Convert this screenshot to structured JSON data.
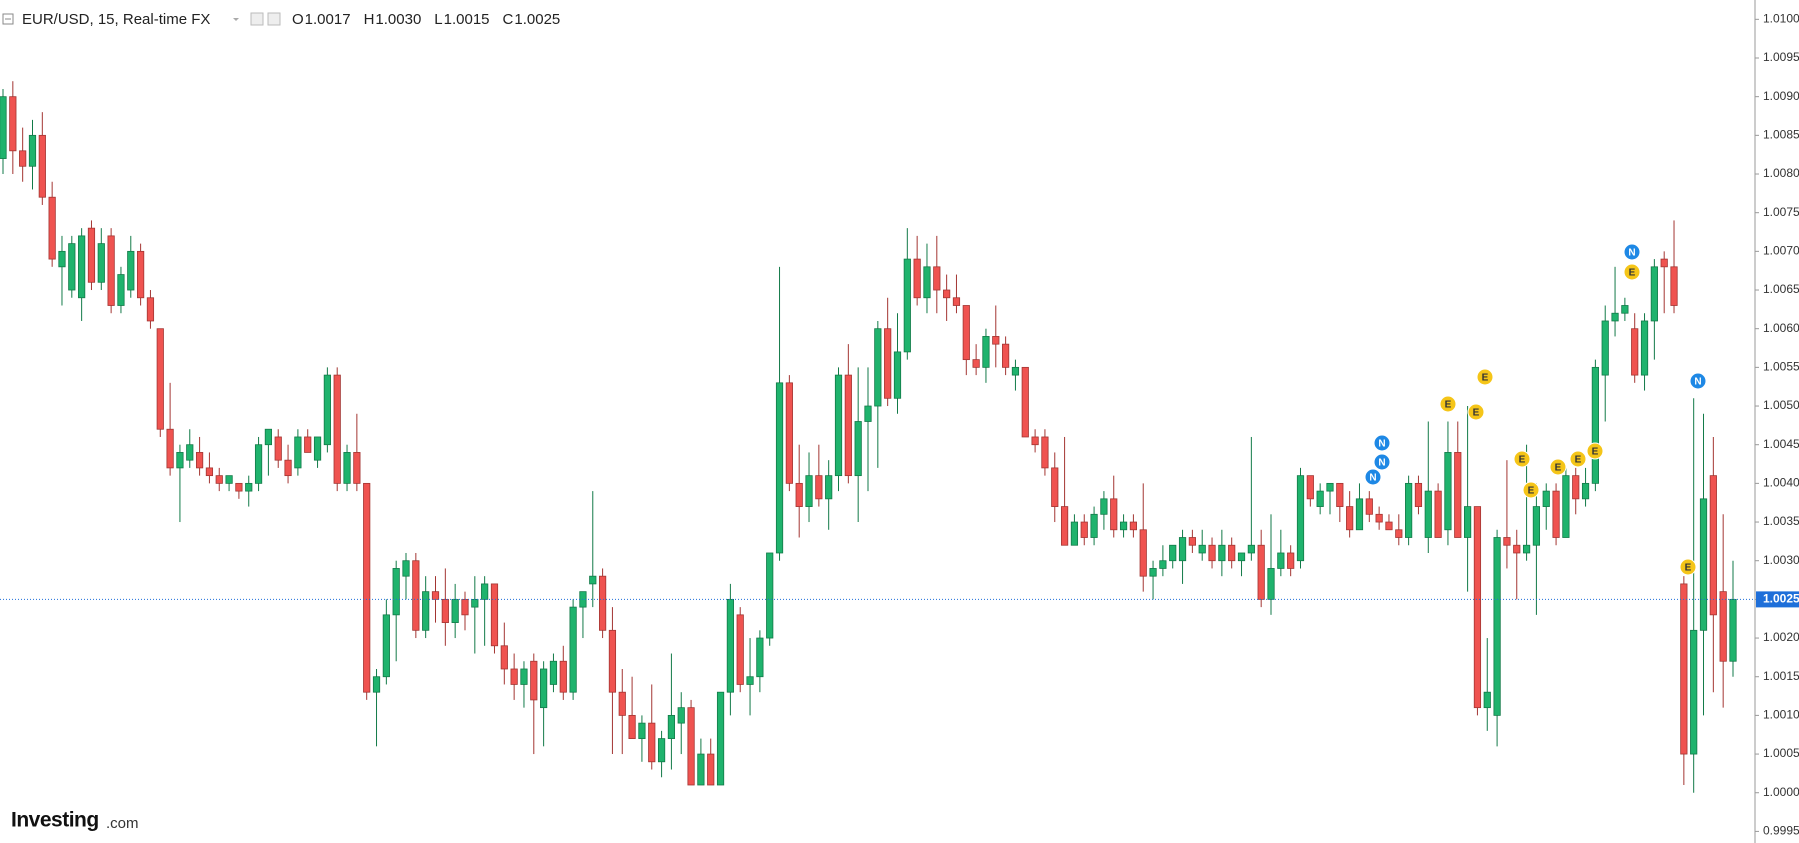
{
  "chart_data": {
    "type": "candlestick",
    "symbol": "EUR/USD, 15, Real-time FX",
    "ohlc": [
      {
        "name": "O",
        "value": {
          "value": 1.0017,
          "label": "1.0017"
        }
      },
      {
        "name": "H",
        "value": {
          "value": 1.003,
          "label": "1.0030"
        }
      },
      {
        "name": "L",
        "value": {
          "value": 1.0015,
          "label": "1.0015"
        }
      },
      {
        "name": "C",
        "value": {
          "value": 1.0025,
          "label": "1.0025"
        }
      }
    ],
    "last": {
      "value": 1.0025,
      "label": "1.0025"
    },
    "up_color": "#1fb36d",
    "down_color": "#ef5350",
    "line_color": "#1e6fd9",
    "brand": "Investing",
    "brand_suffix": ".com",
    "events": [
      "N",
      "N",
      "N",
      "E",
      "E",
      "E",
      "E",
      "E",
      "E",
      "E",
      "E",
      "E",
      "N",
      "N",
      "E"
    ],
    "ylim": [
      0.99935,
      1.01025
    ],
    "yticks": [
      {
        "value": 0.9995,
        "label": "0.9995"
      },
      {
        "value": 1.0,
        "label": "1.0000"
      },
      {
        "value": 1.0005,
        "label": "1.0005"
      },
      {
        "value": 1.001,
        "label": "1.0010"
      },
      {
        "value": 1.0015,
        "label": "1.0015"
      },
      {
        "value": 1.002,
        "label": "1.0020"
      },
      {
        "value": 1.0025,
        "label": "1.0025"
      },
      {
        "value": 1.003,
        "label": "1.0030"
      },
      {
        "value": 1.0035,
        "label": "1.0035"
      },
      {
        "value": 1.004,
        "label": "1.0040"
      },
      {
        "value": 1.0045,
        "label": "1.0045"
      },
      {
        "value": 1.005,
        "label": "1.0050"
      },
      {
        "value": 1.0055,
        "label": "1.0055"
      },
      {
        "value": 1.006,
        "label": "1.0060"
      },
      {
        "value": 1.0065,
        "label": "1.0065"
      },
      {
        "value": 1.007,
        "label": "1.0070"
      },
      {
        "value": 1.0075,
        "label": "1.0075"
      },
      {
        "value": 1.008,
        "label": "1.0080"
      },
      {
        "value": 1.0085,
        "label": "1.0085"
      },
      {
        "value": 1.009,
        "label": "1.0090"
      },
      {
        "value": 1.0095,
        "label": "1.0095"
      },
      {
        "value": 1.01,
        "label": "1.0100"
      }
    ],
    "open": [
      1.0082,
      1.009,
      1.0083,
      1.0081,
      1.0085,
      1.0077,
      1.0068,
      1.0065,
      1.0064,
      1.0073,
      1.0066,
      1.0072,
      1.0063,
      1.0065,
      1.007,
      1.0064,
      1.006,
      1.0047,
      1.0042,
      1.0043,
      1.0044,
      1.0042,
      1.0041,
      1.004,
      1.004,
      1.0039,
      1.004,
      1.0045,
      1.0046,
      1.0043,
      1.0042,
      1.0046,
      1.0043,
      1.0045,
      1.0054,
      1.004,
      1.0044,
      1.004,
      1.0013,
      1.0015,
      1.0023,
      1.0028,
      1.003,
      1.0021,
      1.0026,
      1.0025,
      1.0022,
      1.0025,
      1.0024,
      1.0025,
      1.0027,
      1.0019,
      1.0016,
      1.0014,
      1.0017,
      1.0011,
      1.0014,
      1.0017,
      1.0013,
      1.0024,
      1.0027,
      1.0028,
      1.0021,
      1.0013,
      1.001,
      1.0007,
      1.0009,
      1.0004,
      1.0007,
      1.0009,
      1.0011,
      1.0001,
      1.0005,
      1.0001,
      1.0013,
      1.0023,
      1.0014,
      1.0015,
      1.002,
      1.0031,
      1.0053,
      1.004,
      1.0037,
      1.0041,
      1.0038,
      1.0041,
      1.0054,
      1.0041,
      1.0048,
      1.005,
      1.006,
      1.0051,
      1.0057,
      1.0069,
      1.0064,
      1.0068,
      1.0065,
      1.0064,
      1.0063,
      1.0056,
      1.0055,
      1.0059,
      1.0058,
      1.0054,
      1.0055,
      1.0046,
      1.0046,
      1.0042,
      1.0037,
      1.0032,
      1.0035,
      1.0033,
      1.0036,
      1.0038,
      1.0034,
      1.0035,
      1.0034,
      1.0028,
      1.0029,
      1.003,
      1.003,
      1.0033,
      1.0031,
      1.0032,
      1.003,
      1.0032,
      1.003,
      1.0031,
      1.0032,
      1.0025,
      1.0029,
      1.0031,
      1.003,
      1.0041,
      1.0037,
      1.0039,
      1.004,
      1.0037,
      1.0034,
      1.0038,
      1.0036,
      1.0035,
      1.0034,
      1.0033,
      1.004,
      1.0033,
      1.0039,
      1.0034,
      1.0044,
      1.0033,
      1.0037,
      1.0011,
      1.001,
      1.0033,
      1.0032,
      1.0031,
      1.0032,
      1.0037,
      1.0039,
      1.0033,
      1.0041,
      1.0038,
      1.004,
      1.0054,
      1.0061,
      1.0062,
      1.006,
      1.0054,
      1.0061,
      1.0069,
      1.0068,
      1.0027,
      1.0005,
      1.0021,
      1.0041,
      1.0026,
      1.0017
    ],
    "high": [
      1.0091,
      1.0092,
      1.0086,
      1.0087,
      1.0088,
      1.0079,
      1.0072,
      1.0072,
      1.0073,
      1.0074,
      1.0073,
      1.0073,
      1.0068,
      1.0072,
      1.0071,
      1.0065,
      1.006,
      1.0053,
      1.0045,
      1.0047,
      1.0046,
      1.0044,
      1.0042,
      1.0041,
      1.004,
      1.0041,
      1.0046,
      1.0047,
      1.0047,
      1.0045,
      1.0047,
      1.0047,
      1.0046,
      1.0055,
      1.0055,
      1.0045,
      1.0049,
      1.004,
      1.0016,
      1.0025,
      1.003,
      1.0031,
      1.0031,
      1.0028,
      1.0028,
      1.0029,
      1.0027,
      1.0026,
      1.0028,
      1.0028,
      1.0027,
      1.0022,
      1.0018,
      1.0017,
      1.0018,
      1.0017,
      1.0018,
      1.0019,
      1.0025,
      1.0026,
      1.0039,
      1.0029,
      1.0024,
      1.0016,
      1.0015,
      1.001,
      1.0014,
      1.0008,
      1.0018,
      1.0013,
      1.0012,
      1.0007,
      1.0007,
      1.0013,
      1.0027,
      1.0024,
      1.002,
      1.0021,
      1.0031,
      1.0068,
      1.0054,
      1.0045,
      1.0044,
      1.0045,
      1.0043,
      1.0055,
      1.0058,
      1.0055,
      1.0055,
      1.0061,
      1.0064,
      1.0062,
      1.0073,
      1.0072,
      1.0071,
      1.0072,
      1.0067,
      1.0067,
      1.0063,
      1.0058,
      1.006,
      1.0063,
      1.0059,
      1.0056,
      1.0055,
      1.0047,
      1.0047,
      1.0044,
      1.0046,
      1.0036,
      1.0036,
      1.0037,
      1.0039,
      1.0041,
      1.0036,
      1.0036,
      1.004,
      1.003,
      1.0032,
      1.0032,
      1.0034,
      1.0034,
      1.0034,
      1.0033,
      1.0034,
      1.0033,
      1.0031,
      1.0046,
      1.0034,
      1.0036,
      1.0034,
      1.0032,
      1.0042,
      1.0041,
      1.004,
      1.004,
      1.004,
      1.0039,
      1.004,
      1.0039,
      1.0037,
      1.0036,
      1.0036,
      1.0041,
      1.0041,
      1.0048,
      1.004,
      1.0048,
      1.0048,
      1.005,
      1.0037,
      1.002,
      1.0034,
      1.0043,
      1.0034,
      1.0045,
      1.004,
      1.004,
      1.004,
      1.0042,
      1.0042,
      1.0042,
      1.0056,
      1.0063,
      1.0068,
      1.0064,
      1.0062,
      1.0062,
      1.0069,
      1.007,
      1.0074,
      1.0028,
      1.0051,
      1.0049,
      1.0046,
      1.0036,
      1.003
    ],
    "low": [
      1.008,
      1.008,
      1.0079,
      1.0078,
      1.0076,
      1.0068,
      1.0063,
      1.0064,
      1.0061,
      1.0065,
      1.0065,
      1.0062,
      1.0062,
      1.0064,
      1.0063,
      1.006,
      1.0046,
      1.0041,
      1.0035,
      1.0042,
      1.0041,
      1.004,
      1.0039,
      1.0039,
      1.0038,
      1.0037,
      1.0039,
      1.0041,
      1.0042,
      1.004,
      1.0041,
      1.0044,
      1.0042,
      1.0044,
      1.0039,
      1.0039,
      1.0039,
      1.0012,
      1.0006,
      1.0014,
      1.0017,
      1.0025,
      1.002,
      1.002,
      1.0022,
      1.0019,
      1.002,
      1.0021,
      1.0018,
      1.0019,
      1.0018,
      1.0014,
      1.0012,
      1.0011,
      1.0005,
      1.0006,
      1.0013,
      1.0012,
      1.0012,
      1.002,
      1.0024,
      1.002,
      1.0005,
      1.0005,
      1.0007,
      1.0004,
      1.0003,
      1.0002,
      1.0003,
      1.0005,
      1.0001,
      1.0001,
      1.0001,
      1.0001,
      1.001,
      1.0013,
      1.001,
      1.0013,
      1.0019,
      1.003,
      1.0039,
      1.0033,
      1.0035,
      1.0037,
      1.0034,
      1.0039,
      1.004,
      1.0035,
      1.0039,
      1.0042,
      1.005,
      1.0049,
      1.0056,
      1.0063,
      1.0062,
      1.0062,
      1.0061,
      1.0062,
      1.0054,
      1.0054,
      1.0053,
      1.0055,
      1.0054,
      1.0052,
      1.0046,
      1.0044,
      1.0041,
      1.0035,
      1.0032,
      1.0032,
      1.0032,
      1.0032,
      1.0034,
      1.0033,
      1.0033,
      1.0033,
      1.0026,
      1.0025,
      1.0028,
      1.0029,
      1.0027,
      1.0031,
      1.003,
      1.0029,
      1.0028,
      1.0029,
      1.0028,
      1.003,
      1.0024,
      1.0023,
      1.0028,
      1.0028,
      1.0029,
      1.0037,
      1.0036,
      1.0036,
      1.0035,
      1.0033,
      1.0034,
      1.0035,
      1.0034,
      1.0034,
      1.0032,
      1.0032,
      1.0036,
      1.0031,
      1.0033,
      1.0032,
      1.0033,
      1.0026,
      1.001,
      1.0008,
      1.0006,
      1.0029,
      1.0025,
      1.003,
      1.0023,
      1.0034,
      1.0032,
      1.0033,
      1.0036,
      1.0037,
      1.0039,
      1.0048,
      1.0059,
      1.0061,
      1.0053,
      1.0052,
      1.0056,
      1.0062,
      1.0062,
      1.0001,
      1.0,
      1.001,
      1.0013,
      1.0011,
      1.0015
    ],
    "close": [
      1.009,
      1.0083,
      1.0081,
      1.0085,
      1.0077,
      1.0069,
      1.007,
      1.0071,
      1.0072,
      1.0066,
      1.0071,
      1.0063,
      1.0067,
      1.007,
      1.0064,
      1.0061,
      1.0047,
      1.0042,
      1.0044,
      1.0045,
      1.0042,
      1.0041,
      1.004,
      1.0041,
      1.0039,
      1.004,
      1.0045,
      1.0047,
      1.0043,
      1.0041,
      1.0046,
      1.0044,
      1.0046,
      1.0054,
      1.004,
      1.0044,
      1.004,
      1.0013,
      1.0015,
      1.0023,
      1.0029,
      1.003,
      1.0021,
      1.0026,
      1.0025,
      1.0022,
      1.0025,
      1.0023,
      1.0025,
      1.0027,
      1.0019,
      1.0016,
      1.0014,
      1.0016,
      1.0012,
      1.0016,
      1.0017,
      1.0013,
      1.0024,
      1.0026,
      1.0028,
      1.0021,
      1.0013,
      1.001,
      1.0007,
      1.0009,
      1.0004,
      1.0007,
      1.001,
      1.0011,
      1.0001,
      1.0005,
      1.0001,
      1.0013,
      1.0025,
      1.0014,
      1.0015,
      1.002,
      1.0031,
      1.0053,
      1.004,
      1.0037,
      1.0041,
      1.0038,
      1.0041,
      1.0054,
      1.0041,
      1.0048,
      1.005,
      1.006,
      1.0051,
      1.0057,
      1.0069,
      1.0064,
      1.0068,
      1.0065,
      1.0064,
      1.0063,
      1.0056,
      1.0055,
      1.0059,
      1.0058,
      1.0055,
      1.0055,
      1.0046,
      1.0045,
      1.0042,
      1.0037,
      1.0032,
      1.0035,
      1.0033,
      1.0036,
      1.0038,
      1.0034,
      1.0035,
      1.0034,
      1.0028,
      1.0029,
      1.003,
      1.0032,
      1.0033,
      1.0032,
      1.0032,
      1.003,
      1.0032,
      1.003,
      1.0031,
      1.0032,
      1.0025,
      1.0029,
      1.0031,
      1.0029,
      1.0041,
      1.0038,
      1.0039,
      1.004,
      1.0037,
      1.0034,
      1.0038,
      1.0036,
      1.0035,
      1.0034,
      1.0033,
      1.004,
      1.0037,
      1.0039,
      1.0033,
      1.0044,
      1.0033,
      1.0037,
      1.0011,
      1.0013,
      1.0033,
      1.0032,
      1.0031,
      1.0032,
      1.0037,
      1.0039,
      1.0033,
      1.0041,
      1.0038,
      1.004,
      1.0055,
      1.0061,
      1.0062,
      1.0063,
      1.0054,
      1.0061,
      1.0068,
      1.0068,
      1.0063,
      1.0005,
      1.0021,
      1.0038,
      1.0023,
      1.0017,
      1.0025
    ]
  }
}
